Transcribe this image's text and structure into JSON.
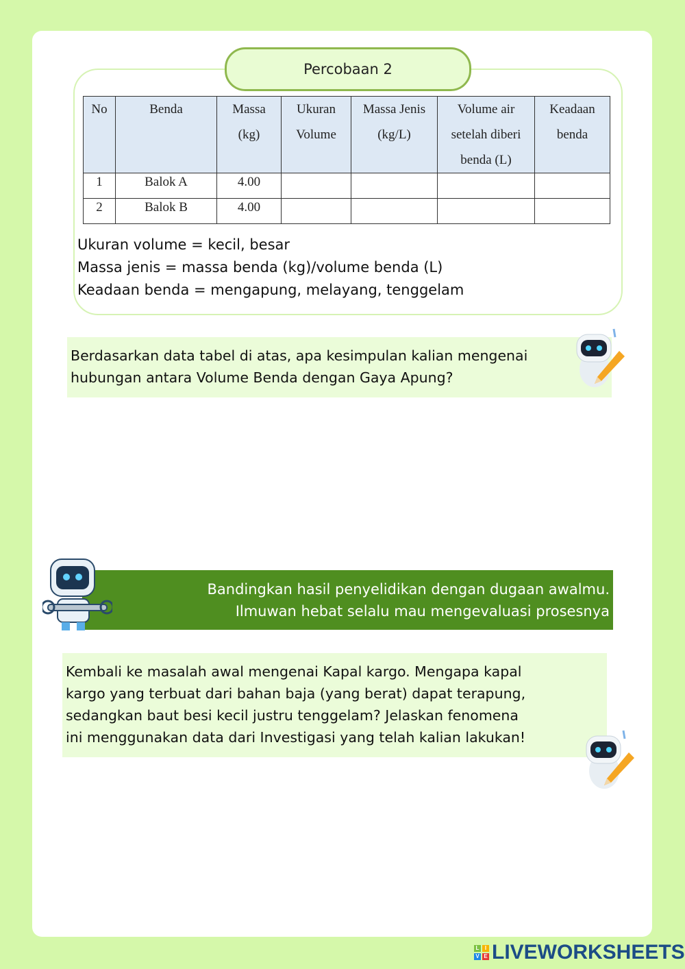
{
  "title": "Percobaan 2",
  "table": {
    "headers": [
      [
        "No"
      ],
      [
        "Benda"
      ],
      [
        "Massa",
        "(kg)"
      ],
      [
        "Ukuran",
        "Volume"
      ],
      [
        "Massa Jenis",
        "(kg/L)"
      ],
      [
        "Volume air",
        "setelah diberi",
        "benda (L)"
      ],
      [
        "Keadaan",
        "benda"
      ]
    ],
    "rows": [
      [
        "1",
        "Balok A",
        "4.00",
        "",
        "",
        "",
        ""
      ],
      [
        "2",
        "Balok B",
        "4.00",
        "",
        "",
        "",
        ""
      ]
    ]
  },
  "notes": [
    "Ukuran volume = kecil, besar",
    "Massa jenis = massa benda (kg)/volume benda (L)",
    "Keadaan benda = mengapung, melayang, tenggelam"
  ],
  "question1": [
    "Berdasarkan data tabel di atas, apa kesimpulan kalian mengenai",
    "hubungan antara Volume Benda dengan Gaya Apung?"
  ],
  "banner": [
    "Bandingkan hasil penyelidikan dengan dugaan awalmu.",
    "Ilmuwan hebat selalu mau mengevaluasi prosesnya"
  ],
  "question2": [
    "Kembali ke masalah awal mengenai Kapal kargo. Mengapa kapal",
    "kargo yang terbuat dari bahan baja (yang berat) dapat terapung,",
    "sedangkan baut besi kecil justru tenggelam? Jelaskan fenomena",
    "ini menggunakan data dari Investigasi yang telah kalian lakukan!"
  ],
  "logo": {
    "text": "LIVEWORKSHEETS",
    "letters": [
      "L",
      "I",
      "V",
      "E"
    ]
  },
  "colors": {
    "background": "#d5f8aa",
    "banner": "#4f8e20",
    "box": "#ebfcd9",
    "header": "#dde8f4"
  }
}
